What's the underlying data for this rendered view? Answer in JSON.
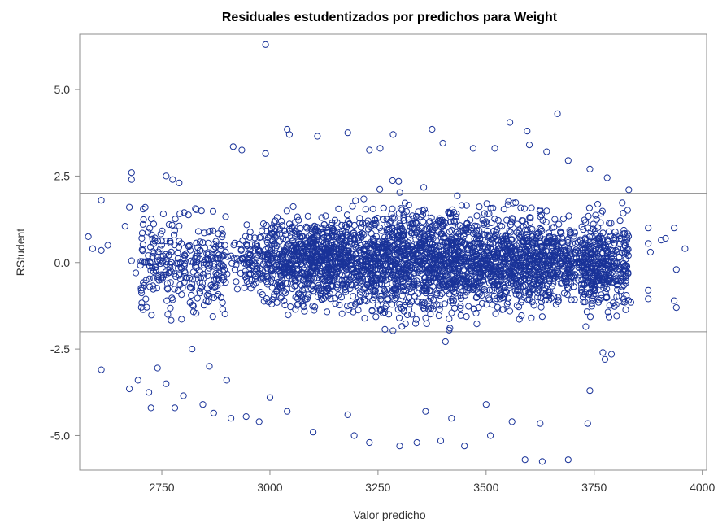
{
  "chart_data": {
    "type": "scatter",
    "title": "Residuales estudentizados por predichos para Weight",
    "xlabel": "Valor predicho",
    "ylabel": "RStudent",
    "xlim": [
      2560,
      4010
    ],
    "ylim": [
      -6.0,
      6.6
    ],
    "x_ticks": [
      2750,
      3000,
      3250,
      3500,
      3750,
      4000
    ],
    "y_ticks": [
      5.0,
      2.5,
      0.0,
      -2.5,
      -5.0
    ],
    "x_tick_labels": [
      "2750",
      "3000",
      "3250",
      "3500",
      "3750",
      "4000"
    ],
    "y_tick_labels": [
      "5.0",
      "2.5",
      "0.0",
      "-2.5",
      "-5.0"
    ],
    "reference_lines_y": [
      2,
      -2
    ],
    "grid": false,
    "marker": "open-circle",
    "marker_color": "#1a3399",
    "series": [
      {
        "points": [
          [
            2990,
            6.3
          ],
          [
            3665,
            4.3
          ],
          [
            3555,
            4.05
          ],
          [
            3595,
            3.8
          ],
          [
            3375,
            3.85
          ],
          [
            3040,
            3.85
          ],
          [
            3045,
            3.7
          ],
          [
            3180,
            3.75
          ],
          [
            3285,
            3.7
          ],
          [
            3110,
            3.65
          ],
          [
            2915,
            3.35
          ],
          [
            2935,
            3.25
          ],
          [
            2990,
            3.15
          ],
          [
            3230,
            3.25
          ],
          [
            3255,
            3.3
          ],
          [
            2680,
            2.6
          ],
          [
            2680,
            2.4
          ],
          [
            2760,
            2.5
          ],
          [
            2775,
            2.4
          ],
          [
            2790,
            2.3
          ],
          [
            3400,
            3.45
          ],
          [
            3470,
            3.3
          ],
          [
            3520,
            3.3
          ],
          [
            3600,
            3.4
          ],
          [
            3640,
            3.2
          ],
          [
            3740,
            2.7
          ],
          [
            3780,
            2.45
          ],
          [
            3830,
            2.1
          ],
          [
            3690,
            2.95
          ],
          [
            2580,
            0.75
          ],
          [
            2590,
            0.4
          ],
          [
            2610,
            0.35
          ],
          [
            2625,
            0.5
          ],
          [
            2610,
            1.8
          ],
          [
            2665,
            1.05
          ],
          [
            2675,
            1.6
          ],
          [
            2680,
            0.05
          ],
          [
            2690,
            -0.3
          ],
          [
            3875,
            1.0
          ],
          [
            3875,
            0.55
          ],
          [
            3880,
            0.3
          ],
          [
            3905,
            0.65
          ],
          [
            3915,
            0.7
          ],
          [
            3935,
            1.0
          ],
          [
            3960,
            0.4
          ],
          [
            3940,
            -0.2
          ],
          [
            3935,
            -1.1
          ],
          [
            3940,
            -1.3
          ],
          [
            3875,
            -0.8
          ],
          [
            3875,
            -1.05
          ],
          [
            3835,
            -1.15
          ],
          [
            2610,
            -3.1
          ],
          [
            2675,
            -3.65
          ],
          [
            2695,
            -3.4
          ],
          [
            2720,
            -3.75
          ],
          [
            2725,
            -4.2
          ],
          [
            2740,
            -3.05
          ],
          [
            2760,
            -3.5
          ],
          [
            2780,
            -4.2
          ],
          [
            2800,
            -3.85
          ],
          [
            2845,
            -4.1
          ],
          [
            2870,
            -4.35
          ],
          [
            2910,
            -4.5
          ],
          [
            2945,
            -4.45
          ],
          [
            2975,
            -4.6
          ],
          [
            3100,
            -4.9
          ],
          [
            3195,
            -5.0
          ],
          [
            3230,
            -5.2
          ],
          [
            3300,
            -5.3
          ],
          [
            3340,
            -5.2
          ],
          [
            3395,
            -5.15
          ],
          [
            3450,
            -5.3
          ],
          [
            3510,
            -5.0
          ],
          [
            3590,
            -5.7
          ],
          [
            3630,
            -5.75
          ],
          [
            3690,
            -5.7
          ],
          [
            3625,
            -4.65
          ],
          [
            3735,
            -4.65
          ],
          [
            3740,
            -3.7
          ],
          [
            3770,
            -2.6
          ],
          [
            3775,
            -2.8
          ],
          [
            3790,
            -2.65
          ],
          [
            3560,
            -4.6
          ],
          [
            3500,
            -4.1
          ],
          [
            3420,
            -4.5
          ],
          [
            3360,
            -4.3
          ],
          [
            3180,
            -4.4
          ],
          [
            3040,
            -4.3
          ],
          [
            3000,
            -3.9
          ],
          [
            2900,
            -3.4
          ],
          [
            2860,
            -3.0
          ],
          [
            2820,
            -2.5
          ]
        ]
      }
    ],
    "dense_band": {
      "x_range": [
        2880,
        3820
      ],
      "y_range": [
        -2.3,
        2.5
      ],
      "approx_points": 3000
    }
  }
}
